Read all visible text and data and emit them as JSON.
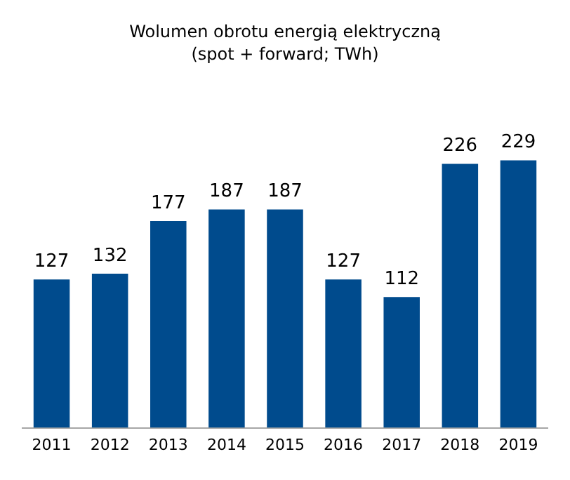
{
  "chart_data": {
    "type": "bar",
    "title": "Wolumen obrotu energią elektryczną",
    "subtitle": "(spot + forward; TWh)",
    "categories": [
      "2011",
      "2012",
      "2013",
      "2014",
      "2015",
      "2016",
      "2017",
      "2018",
      "2019"
    ],
    "values": [
      127,
      132,
      177,
      187,
      187,
      127,
      112,
      226,
      229
    ],
    "color": "#004b8d",
    "data_labels": true,
    "grid": false,
    "legend": false
  }
}
